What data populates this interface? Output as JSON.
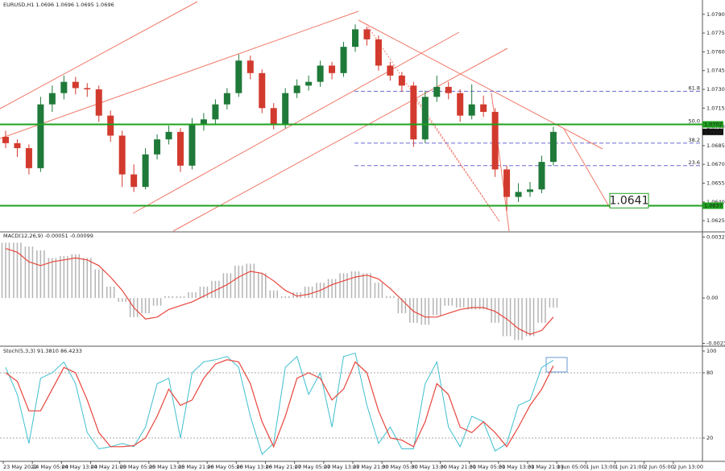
{
  "chart_data": [
    {
      "type": "candlestick",
      "title": "EURUSD,H1 1.0696 1.0696 1.0695 1.0696",
      "xlim": [
        0,
        60
      ],
      "xticks": [
        {
          "value": 0,
          "label": "23 May 2022"
        },
        {
          "value": 2.5,
          "label": "24 May 05:00"
        },
        {
          "value": 5,
          "label": "24 May 13:00"
        },
        {
          "value": 7.5,
          "label": "24 May 21:00"
        },
        {
          "value": 10,
          "label": "25 May 05:00"
        },
        {
          "value": 12.5,
          "label": "25 May 13:00"
        },
        {
          "value": 15,
          "label": "25 May 21:00"
        },
        {
          "value": 17.5,
          "label": "26 May 05:00"
        },
        {
          "value": 20,
          "label": "26 May 13:00"
        },
        {
          "value": 22.5,
          "label": "26 May 21:00"
        },
        {
          "value": 25,
          "label": "27 May 05:00"
        },
        {
          "value": 27.5,
          "label": "27 May 13:00"
        },
        {
          "value": 30,
          "label": "27 May 21:00"
        },
        {
          "value": 32.5,
          "label": "30 May 05:00"
        },
        {
          "value": 35,
          "label": "30 May 13:00"
        },
        {
          "value": 37.5,
          "label": "30 May 21:00"
        },
        {
          "value": 40,
          "label": "31 May 05:00"
        },
        {
          "value": 42.5,
          "label": "31 May 13:00"
        },
        {
          "value": 45,
          "label": "31 May 21:00"
        },
        {
          "value": 47.5,
          "label": "1 Jun 05:00"
        },
        {
          "value": 50,
          "label": "1 Jun 13:00"
        },
        {
          "value": 52.5,
          "label": "1 Jun 21:00"
        },
        {
          "value": 55,
          "label": "2 Jun 05:00"
        },
        {
          "value": 57.5,
          "label": "2 Jun 13:00"
        }
      ],
      "ylim": [
        1.0618,
        1.0795
      ],
      "yticks": [
        1.0625,
        {
          "value": 1.064,
          "label": "1.0640"
        },
        1.0655,
        {
          "value": 1.067,
          "label": "1.0670"
        },
        1.0685,
        {
          "value": 1.07,
          "label": "1.0700"
        },
        1.0715,
        {
          "value": 1.073,
          "label": "1.0730"
        },
        1.0745,
        {
          "value": 1.076,
          "label": "1.0760"
        },
        1.0775,
        {
          "value": 1.079,
          "label": "1.0790"
        }
      ],
      "up_color": "#1f7a3a",
      "down_color": "#d23a2e",
      "open": [
        1.0692,
        1.0687,
        1.0683,
        1.0667,
        1.0718,
        1.0727,
        1.0736,
        1.0731,
        1.073,
        1.0709,
        1.0693,
        1.0662,
        1.0652,
        1.0678,
        1.069,
        1.0696,
        1.0669,
        1.0702,
        1.0706,
        1.0718,
        1.0727,
        1.0753,
        1.0743,
        1.0715,
        1.0702,
        1.0727,
        1.0733,
        1.0736,
        1.0749,
        1.0743,
        1.0764,
        1.0778,
        1.077,
        1.0749,
        1.0741,
        1.0733,
        1.069,
        1.0724,
        1.0732,
        1.0727,
        1.0709,
        1.0718,
        1.0712,
        1.0666,
        1.0644,
        1.0648,
        1.065,
        1.0672
      ],
      "high": [
        1.0697,
        1.069,
        1.0686,
        1.0724,
        1.0733,
        1.0741,
        1.074,
        1.0735,
        1.0733,
        1.0713,
        1.0697,
        1.067,
        1.0683,
        1.0694,
        1.0701,
        1.0699,
        1.0707,
        1.0711,
        1.0722,
        1.0731,
        1.0758,
        1.0757,
        1.0746,
        1.0719,
        1.0731,
        1.0738,
        1.0741,
        1.0753,
        1.0752,
        1.0768,
        1.0782,
        1.078,
        1.0773,
        1.0752,
        1.0744,
        1.0736,
        1.0729,
        1.0741,
        1.0736,
        1.073,
        1.0734,
        1.0725,
        1.0715,
        1.0669,
        1.0655,
        1.0656,
        1.0677,
        1.07
      ],
      "low": [
        1.0683,
        1.0676,
        1.0662,
        1.0664,
        1.0712,
        1.0722,
        1.0726,
        1.0724,
        1.0704,
        1.0688,
        1.0652,
        1.0648,
        1.065,
        1.0674,
        1.0686,
        1.0664,
        1.0666,
        1.0697,
        1.0702,
        1.0714,
        1.0724,
        1.0738,
        1.0711,
        1.0698,
        1.0699,
        1.0723,
        1.0729,
        1.0732,
        1.0738,
        1.074,
        1.076,
        1.0765,
        1.0745,
        1.0737,
        1.0728,
        1.0684,
        1.0687,
        1.072,
        1.0722,
        1.0704,
        1.0706,
        1.0708,
        1.066,
        1.0633,
        1.064,
        1.0644,
        1.0647,
        1.0669
      ],
      "close": [
        1.0687,
        1.0683,
        1.0667,
        1.0718,
        1.0727,
        1.0736,
        1.0731,
        1.073,
        1.0709,
        1.0693,
        1.0662,
        1.0652,
        1.0678,
        1.069,
        1.0696,
        1.0669,
        1.0702,
        1.0706,
        1.0718,
        1.0727,
        1.0753,
        1.0743,
        1.0715,
        1.0702,
        1.0727,
        1.0733,
        1.0736,
        1.0749,
        1.0743,
        1.0764,
        1.0778,
        1.077,
        1.0749,
        1.0741,
        1.0733,
        1.069,
        1.0724,
        1.0732,
        1.0727,
        1.0709,
        1.0718,
        1.0712,
        1.0666,
        1.0644,
        1.0648,
        1.065,
        1.0672,
        1.0696
      ],
      "levels": [
        1.0702,
        1.0637
      ],
      "level_color": "#1ea01e",
      "last_price": 1.0696,
      "fib_levels": [
        {
          "value": 1.07285,
          "label": "61.8"
        },
        {
          "value": 1.0702,
          "label": "50.0"
        },
        {
          "value": 1.0687,
          "label": "38.2"
        },
        {
          "value": 1.0669,
          "label": "23.6"
        }
      ],
      "fib_color": "#6a6ad0",
      "annotation": 1.0641
    },
    {
      "type": "macd",
      "title": "MACD(12,26,9) -0.00051 -0.00099",
      "ylim": [
        -0.0024,
        0.0033
      ],
      "yticks": [
        0.0032,
        {
          "value": 0,
          "label": "0.00"
        },
        -0.00238
      ],
      "histogram": {
        "color": "#b4b4b4",
        "values": [
          0.0029,
          0.0029,
          0.0027,
          0.0025,
          0.0021,
          0.0022,
          0.0023,
          0.0021,
          0.0015,
          0.0006,
          -0.0002,
          -0.001,
          -0.0008,
          -0.0004,
          0.0001,
          0.0001,
          0.0003,
          0.0006,
          0.0009,
          0.0013,
          0.0017,
          0.0018,
          0.0013,
          0.0004,
          0.0001,
          0.0003,
          0.0006,
          0.0008,
          0.001,
          0.0013,
          0.0014,
          0.0013,
          0.0008,
          0.0001,
          -0.0008,
          -0.0013,
          -0.0014,
          -0.0009,
          -0.0004,
          -0.0005,
          -0.0006,
          -0.0006,
          -0.0013,
          -0.002,
          -0.0022,
          -0.002,
          -0.0013,
          -0.0005
        ]
      },
      "signal": {
        "color": "#e8453c",
        "values": [
          0.0026,
          0.0024,
          0.0019,
          0.0017,
          0.0019,
          0.002,
          0.0021,
          0.002,
          0.0017,
          0.0011,
          0.0004,
          -0.0005,
          -0.0011,
          -0.001,
          -0.0006,
          -0.0004,
          -0.0002,
          0.0001,
          0.0004,
          0.0007,
          0.0011,
          0.0014,
          0.0013,
          0.0009,
          0.0004,
          0.0001,
          0.0002,
          0.0004,
          0.0007,
          0.0009,
          0.0011,
          0.0012,
          0.001,
          0.0005,
          -0.0001,
          -0.0007,
          -0.001,
          -0.001,
          -0.0008,
          -0.0006,
          -0.0005,
          -0.0005,
          -0.0007,
          -0.0011,
          -0.0016,
          -0.0019,
          -0.0017,
          -0.001
        ]
      }
    },
    {
      "type": "stochastic",
      "title": "Stoch(5,3,3) 91.3810 86.4233",
      "ylim": [
        0,
        100
      ],
      "yticks": [
        20,
        80,
        100
      ],
      "levels": [
        20,
        80
      ],
      "main": {
        "color": "#3fbfcf",
        "values": [
          85,
          60,
          15,
          75,
          80,
          90,
          70,
          25,
          10,
          12,
          15,
          12,
          30,
          70,
          75,
          20,
          80,
          90,
          92,
          95,
          85,
          40,
          5,
          15,
          85,
          95,
          60,
          80,
          30,
          95,
          98,
          50,
          15,
          30,
          10,
          10,
          70,
          90,
          30,
          12,
          40,
          35,
          8,
          15,
          50,
          55,
          85,
          91.381
        ]
      },
      "signal": {
        "color": "#e8453c",
        "values": [
          80,
          72,
          45,
          45,
          65,
          85,
          80,
          55,
          25,
          12,
          12,
          13,
          20,
          40,
          65,
          50,
          55,
          75,
          88,
          92,
          90,
          70,
          35,
          12,
          40,
          75,
          80,
          75,
          55,
          65,
          90,
          80,
          45,
          20,
          18,
          12,
          35,
          70,
          60,
          30,
          25,
          35,
          25,
          12,
          30,
          50,
          65,
          86.4233
        ]
      }
    }
  ]
}
